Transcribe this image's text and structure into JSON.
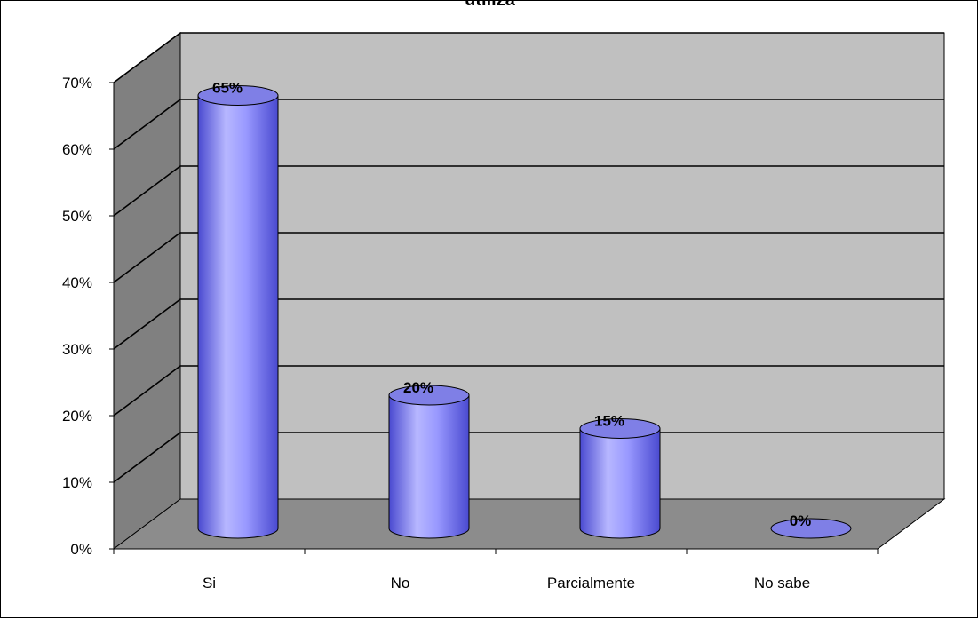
{
  "chart_data": {
    "type": "bar",
    "title": "utiliza",
    "categories": [
      "Si",
      "No",
      "Parcialmente",
      "No sabe"
    ],
    "values": [
      65,
      20,
      15,
      0
    ],
    "data_labels": [
      "65%",
      "20%",
      "15%",
      "0%"
    ],
    "yticks": [
      "0%",
      "10%",
      "20%",
      "30%",
      "40%",
      "50%",
      "60%",
      "70%"
    ],
    "ylim": [
      0,
      70
    ],
    "xlabel": "",
    "ylabel": "",
    "grid": true,
    "style": "3d-cylinder",
    "colors": {
      "bar": "#9999ff",
      "bar_dark": "#4a4ad0",
      "bar_top": "#7f7fe6",
      "back_wall": "#c0c0c0",
      "side_wall": "#808080",
      "floor": "#8c8c8c",
      "watermark": "#e06060"
    }
  }
}
